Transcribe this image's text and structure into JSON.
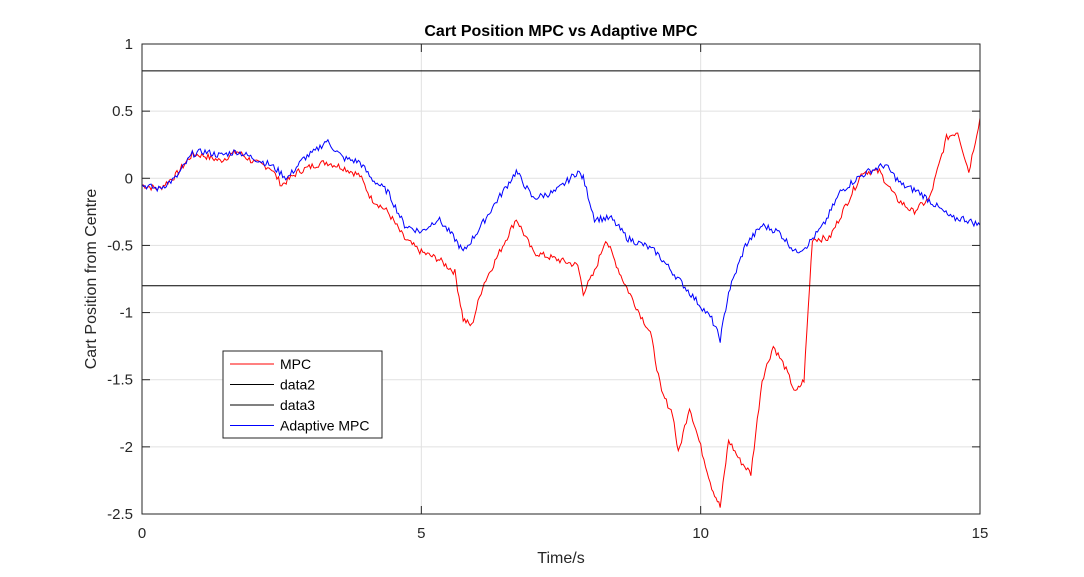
{
  "chart_data": {
    "type": "line",
    "title": "Cart Position MPC vs Adaptive MPC",
    "xlabel": "Time/s",
    "ylabel": "Cart Position from Centre",
    "xlim": [
      0,
      15
    ],
    "ylim": [
      -2.5,
      1
    ],
    "xticks": [
      0,
      5,
      10,
      15
    ],
    "xtick_labels": [
      "0",
      "5",
      "10",
      "15"
    ],
    "yticks": [
      1,
      0.5,
      0,
      -0.5,
      -1,
      -1.5,
      -2,
      -2.5
    ],
    "ytick_labels": [
      "1",
      "0.5",
      "0",
      "-0.5",
      "-1",
      "-1.5",
      "-2",
      "-2.5"
    ],
    "grid": true,
    "legend_position": "lower-left",
    "series": [
      {
        "name": "MPC",
        "color": "#ff0000",
        "x": [
          0,
          0.3,
          0.6,
          0.9,
          1.1,
          1.4,
          1.7,
          2.0,
          2.3,
          2.5,
          2.8,
          3.1,
          3.3,
          3.6,
          3.9,
          4.1,
          4.4,
          4.7,
          5.0,
          5.3,
          5.6,
          5.75,
          5.9,
          6.1,
          6.4,
          6.7,
          7.0,
          7.4,
          7.8,
          7.9,
          8.1,
          8.3,
          8.6,
          8.9,
          9.1,
          9.3,
          9.5,
          9.6,
          9.8,
          10.0,
          10.2,
          10.35,
          10.5,
          10.7,
          10.9,
          11.1,
          11.3,
          11.5,
          11.7,
          11.85,
          12.0,
          12.3,
          12.6,
          12.9,
          13.2,
          13.5,
          13.8,
          14.1,
          14.4,
          14.6,
          14.8,
          15.0
        ],
        "y": [
          -0.05,
          -0.08,
          0.02,
          0.18,
          0.17,
          0.13,
          0.2,
          0.12,
          0.08,
          -0.05,
          0.05,
          0.1,
          0.12,
          0.08,
          0.02,
          -0.15,
          -0.25,
          -0.45,
          -0.55,
          -0.6,
          -0.7,
          -1.05,
          -1.1,
          -0.8,
          -0.55,
          -0.3,
          -0.55,
          -0.6,
          -0.65,
          -0.85,
          -0.7,
          -0.45,
          -0.75,
          -1.0,
          -1.15,
          -1.6,
          -1.75,
          -2.05,
          -1.7,
          -2.0,
          -2.3,
          -2.45,
          -1.95,
          -2.1,
          -2.2,
          -1.5,
          -1.25,
          -1.4,
          -1.6,
          -1.5,
          -0.45,
          -0.45,
          -0.2,
          0.05,
          0.05,
          -0.15,
          -0.25,
          -0.15,
          0.3,
          0.35,
          0.05,
          0.45
        ]
      },
      {
        "name": "data2",
        "color": "#000000",
        "x": [
          0,
          15
        ],
        "y": [
          0.8,
          0.8
        ]
      },
      {
        "name": "data3",
        "color": "#000000",
        "x": [
          0,
          15
        ],
        "y": [
          -0.8,
          -0.8
        ]
      },
      {
        "name": "Adaptive MPC",
        "color": "#0000ff",
        "x": [
          0,
          0.3,
          0.6,
          0.9,
          1.1,
          1.4,
          1.7,
          2.0,
          2.3,
          2.6,
          2.9,
          3.1,
          3.3,
          3.6,
          3.9,
          4.1,
          4.4,
          4.7,
          5.0,
          5.3,
          5.6,
          5.75,
          6.0,
          6.3,
          6.7,
          7.0,
          7.4,
          7.8,
          7.9,
          8.1,
          8.4,
          8.7,
          9.0,
          9.2,
          9.5,
          9.8,
          10.0,
          10.2,
          10.35,
          10.5,
          10.8,
          11.1,
          11.4,
          11.7,
          11.9,
          12.2,
          12.5,
          12.8,
          13.0,
          13.3,
          13.6,
          13.9,
          14.2,
          14.5,
          14.7,
          15.0
        ],
        "y": [
          -0.05,
          -0.08,
          0.0,
          0.18,
          0.2,
          0.17,
          0.2,
          0.15,
          0.1,
          0.0,
          0.15,
          0.2,
          0.28,
          0.15,
          0.12,
          0.0,
          -0.1,
          -0.35,
          -0.4,
          -0.3,
          -0.45,
          -0.55,
          -0.4,
          -0.2,
          0.05,
          -0.15,
          -0.1,
          0.05,
          0.0,
          -0.3,
          -0.3,
          -0.45,
          -0.5,
          -0.55,
          -0.7,
          -0.85,
          -0.95,
          -1.05,
          -1.2,
          -0.85,
          -0.5,
          -0.35,
          -0.4,
          -0.55,
          -0.5,
          -0.35,
          -0.1,
          0.0,
          0.05,
          0.1,
          -0.05,
          -0.1,
          -0.2,
          -0.3,
          -0.3,
          -0.35
        ]
      }
    ]
  }
}
